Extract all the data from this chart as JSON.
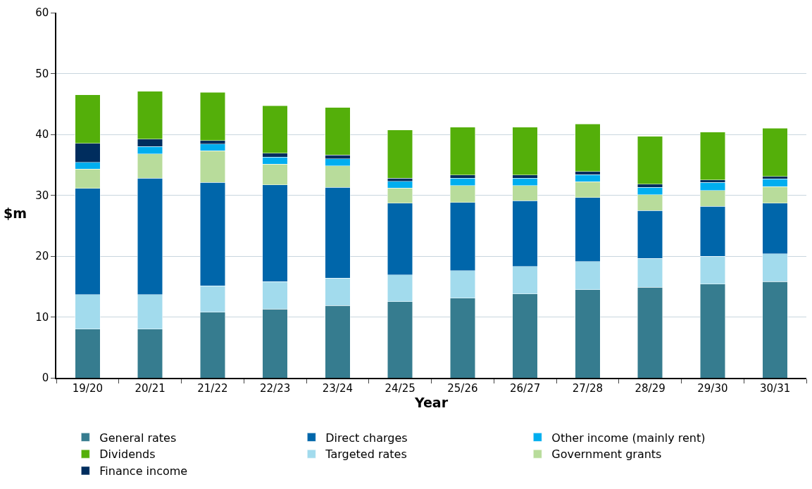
{
  "chart_data": {
    "type": "bar",
    "stacked": true,
    "xlabel": "Year",
    "ylabel": "$m",
    "categories": [
      "19/20",
      "20/21",
      "21/22",
      "22/23",
      "23/24",
      "24/25",
      "25/26",
      "26/27",
      "27/28",
      "28/29",
      "29/30",
      "30/31"
    ],
    "series": [
      {
        "name": "General rates",
        "color": "#367c8f",
        "values": [
          8,
          8,
          10.8,
          11.3,
          11.9,
          12.5,
          13.1,
          13.8,
          14.5,
          14.9,
          15.4,
          15.8
        ]
      },
      {
        "name": "Targeted rates",
        "color": "#a2dbed",
        "values": [
          5.7,
          5.7,
          4.3,
          4.5,
          4.5,
          4.4,
          4.5,
          4.5,
          4.6,
          4.7,
          4.6,
          4.6
        ]
      },
      {
        "name": "Direct charges",
        "color": "#0066aa",
        "values": [
          17.4,
          19.1,
          17,
          15.9,
          14.9,
          11.8,
          11.2,
          10.8,
          10.5,
          7.9,
          8.2,
          8.3
        ]
      },
      {
        "name": "Government grants",
        "color": "#b8dc9b",
        "values": [
          3.2,
          4,
          5.2,
          3.4,
          3.5,
          2.5,
          2.8,
          2.5,
          2.6,
          2.6,
          2.6,
          2.7
        ]
      },
      {
        "name": "Other income (mainly rent)",
        "color": "#00aeef",
        "values": [
          1.1,
          1.2,
          1.1,
          1.2,
          1.2,
          1.1,
          1.2,
          1.2,
          1.2,
          1.2,
          1.3,
          1.3
        ]
      },
      {
        "name": "Finance income",
        "color": "#002d5e",
        "values": [
          3.1,
          1.2,
          0.6,
          0.6,
          0.6,
          0.5,
          0.5,
          0.5,
          0.5,
          0.5,
          0.4,
          0.4
        ]
      },
      {
        "name": "Dividends",
        "color": "#54af0a",
        "values": [
          8,
          7.9,
          7.9,
          7.8,
          7.8,
          7.9,
          7.9,
          7.9,
          7.8,
          7.9,
          7.9,
          7.9
        ]
      }
    ],
    "ylim": [
      0,
      60
    ],
    "yticks": [
      0,
      10,
      20,
      30,
      40,
      50,
      60
    ],
    "grid": "y",
    "legend": "bottom"
  }
}
